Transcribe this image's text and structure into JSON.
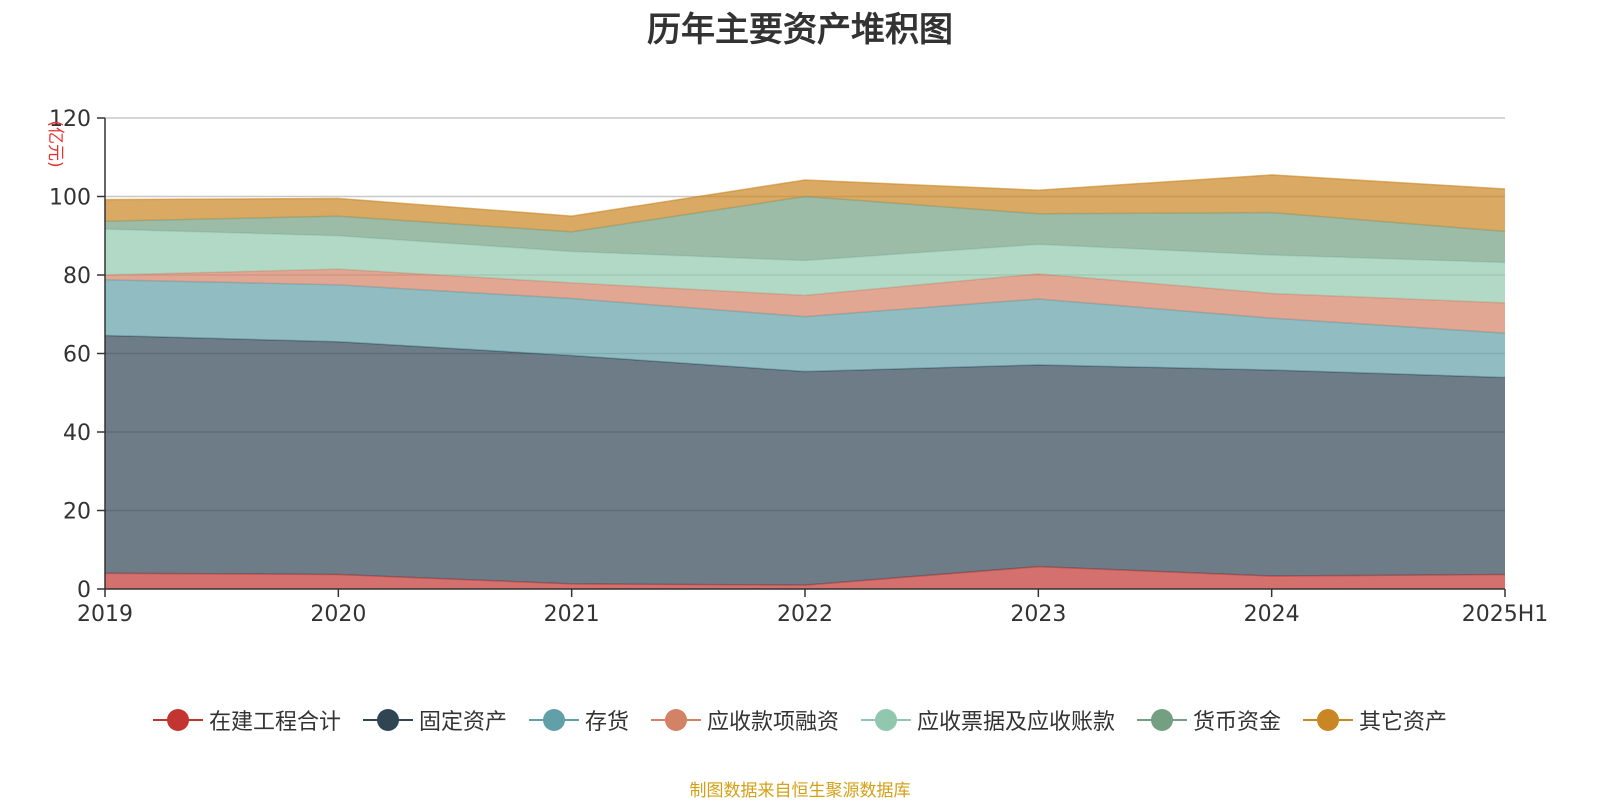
{
  "chart_data": {
    "type": "area",
    "title": "历年主要资产堆积图",
    "ylabel": "(亿元)",
    "ylim": [
      0,
      120
    ],
    "yticks": [
      0,
      20,
      40,
      60,
      80,
      100,
      120
    ],
    "categories": [
      "2019",
      "2020",
      "2021",
      "2022",
      "2023",
      "2024",
      "2025H1"
    ],
    "stacked": true,
    "grid": true,
    "legend_position": "bottom",
    "series": [
      {
        "name": "在建工程合计",
        "color": "#c23531",
        "values": [
          4.0,
          3.7,
          1.3,
          1.0,
          5.7,
          3.3,
          3.7
        ]
      },
      {
        "name": "固定资产",
        "color": "#2f4554",
        "values": [
          60.6,
          59.3,
          58.2,
          54.4,
          51.4,
          52.5,
          50.2
        ]
      },
      {
        "name": "存货",
        "color": "#61a0a8",
        "values": [
          14.2,
          14.5,
          14.5,
          14.0,
          16.8,
          13.2,
          11.3
        ]
      },
      {
        "name": "应收款项融资",
        "color": "#d48265",
        "values": [
          1.2,
          4.0,
          4.0,
          5.4,
          6.4,
          6.3,
          7.7
        ]
      },
      {
        "name": "应收票据及应收账款",
        "color": "#91c7ae",
        "values": [
          11.7,
          8.5,
          8.0,
          8.9,
          7.5,
          9.8,
          10.3
        ]
      },
      {
        "name": "货币资金",
        "color": "#749f83",
        "values": [
          2.0,
          5.0,
          5.0,
          16.3,
          7.8,
          10.8,
          7.9
        ]
      },
      {
        "name": "其它资产",
        "color": "#ca8622",
        "values": [
          5.5,
          4.5,
          4.0,
          4.2,
          6.0,
          9.6,
          10.8
        ]
      }
    ]
  },
  "source_note": "制图数据来自恒生聚源数据库"
}
